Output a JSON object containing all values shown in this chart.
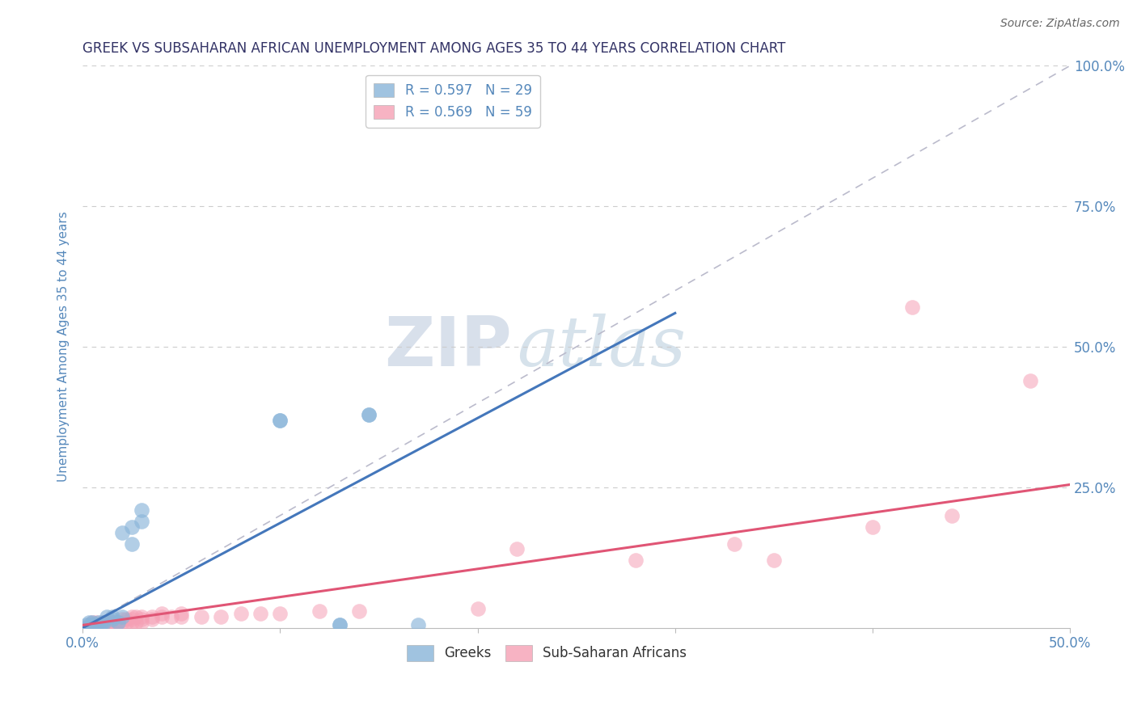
{
  "title": "GREEK VS SUBSAHARAN AFRICAN UNEMPLOYMENT AMONG AGES 35 TO 44 YEARS CORRELATION CHART",
  "source": "Source: ZipAtlas.com",
  "ylabel": "Unemployment Among Ages 35 to 44 years",
  "xlim": [
    0,
    0.5
  ],
  "ylim": [
    0,
    1.0
  ],
  "greek_R": 0.597,
  "greek_N": 29,
  "subsaharan_R": 0.569,
  "subsaharan_N": 59,
  "greek_color": "#89B4D9",
  "greek_line_color": "#4477BB",
  "subsaharan_color": "#F5A0B5",
  "subsaharan_line_color": "#E05575",
  "greek_scatter": [
    [
      0.0,
      0.0
    ],
    [
      0.002,
      0.005
    ],
    [
      0.003,
      0.01
    ],
    [
      0.004,
      0.005
    ],
    [
      0.005,
      0.005
    ],
    [
      0.005,
      0.01
    ],
    [
      0.006,
      0.0
    ],
    [
      0.007,
      0.005
    ],
    [
      0.008,
      0.01
    ],
    [
      0.009,
      0.005
    ],
    [
      0.01,
      0.005
    ],
    [
      0.01,
      0.01
    ],
    [
      0.012,
      0.02
    ],
    [
      0.015,
      0.015
    ],
    [
      0.015,
      0.02
    ],
    [
      0.018,
      0.01
    ],
    [
      0.02,
      0.02
    ],
    [
      0.02,
      0.17
    ],
    [
      0.025,
      0.15
    ],
    [
      0.025,
      0.18
    ],
    [
      0.03,
      0.19
    ],
    [
      0.03,
      0.21
    ],
    [
      0.1,
      0.37
    ],
    [
      0.1,
      0.37
    ],
    [
      0.13,
      0.005
    ],
    [
      0.13,
      0.005
    ],
    [
      0.145,
      0.38
    ],
    [
      0.145,
      0.38
    ],
    [
      0.17,
      0.005
    ]
  ],
  "subsaharan_scatter": [
    [
      0.0,
      0.0
    ],
    [
      0.002,
      0.0
    ],
    [
      0.003,
      0.005
    ],
    [
      0.004,
      0.005
    ],
    [
      0.005,
      0.005
    ],
    [
      0.005,
      0.01
    ],
    [
      0.006,
      0.005
    ],
    [
      0.007,
      0.01
    ],
    [
      0.008,
      0.005
    ],
    [
      0.009,
      0.005
    ],
    [
      0.01,
      0.0
    ],
    [
      0.01,
      0.005
    ],
    [
      0.01,
      0.01
    ],
    [
      0.011,
      0.005
    ],
    [
      0.012,
      0.01
    ],
    [
      0.013,
      0.005
    ],
    [
      0.013,
      0.01
    ],
    [
      0.014,
      0.01
    ],
    [
      0.015,
      0.005
    ],
    [
      0.015,
      0.01
    ],
    [
      0.015,
      0.01
    ],
    [
      0.016,
      0.01
    ],
    [
      0.017,
      0.01
    ],
    [
      0.018,
      0.01
    ],
    [
      0.02,
      0.01
    ],
    [
      0.02,
      0.015
    ],
    [
      0.022,
      0.01
    ],
    [
      0.022,
      0.015
    ],
    [
      0.025,
      0.01
    ],
    [
      0.025,
      0.015
    ],
    [
      0.025,
      0.02
    ],
    [
      0.027,
      0.01
    ],
    [
      0.027,
      0.02
    ],
    [
      0.03,
      0.01
    ],
    [
      0.03,
      0.015
    ],
    [
      0.03,
      0.02
    ],
    [
      0.035,
      0.02
    ],
    [
      0.035,
      0.015
    ],
    [
      0.04,
      0.02
    ],
    [
      0.04,
      0.025
    ],
    [
      0.045,
      0.02
    ],
    [
      0.05,
      0.02
    ],
    [
      0.05,
      0.025
    ],
    [
      0.06,
      0.02
    ],
    [
      0.07,
      0.02
    ],
    [
      0.08,
      0.025
    ],
    [
      0.09,
      0.025
    ],
    [
      0.1,
      0.025
    ],
    [
      0.12,
      0.03
    ],
    [
      0.14,
      0.03
    ],
    [
      0.2,
      0.035
    ],
    [
      0.22,
      0.14
    ],
    [
      0.28,
      0.12
    ],
    [
      0.33,
      0.15
    ],
    [
      0.35,
      0.12
    ],
    [
      0.4,
      0.18
    ],
    [
      0.42,
      0.57
    ],
    [
      0.44,
      0.2
    ],
    [
      0.48,
      0.44
    ]
  ],
  "greek_regline": [
    0.0,
    0.0,
    0.3,
    0.56
  ],
  "subsaharan_regline": [
    0.0,
    0.005,
    0.5,
    0.255
  ],
  "ref_line": [
    0.0,
    0.0,
    0.5,
    1.0
  ],
  "watermark_zip": "ZIP",
  "watermark_atlas": "atlas",
  "watermark_zip_color": "#AABBD4",
  "watermark_atlas_color": "#8BAEC8",
  "background_color": "#FFFFFF",
  "grid_color": "#CCCCCC",
  "axis_label_color": "#5588BB",
  "title_color": "#333366"
}
